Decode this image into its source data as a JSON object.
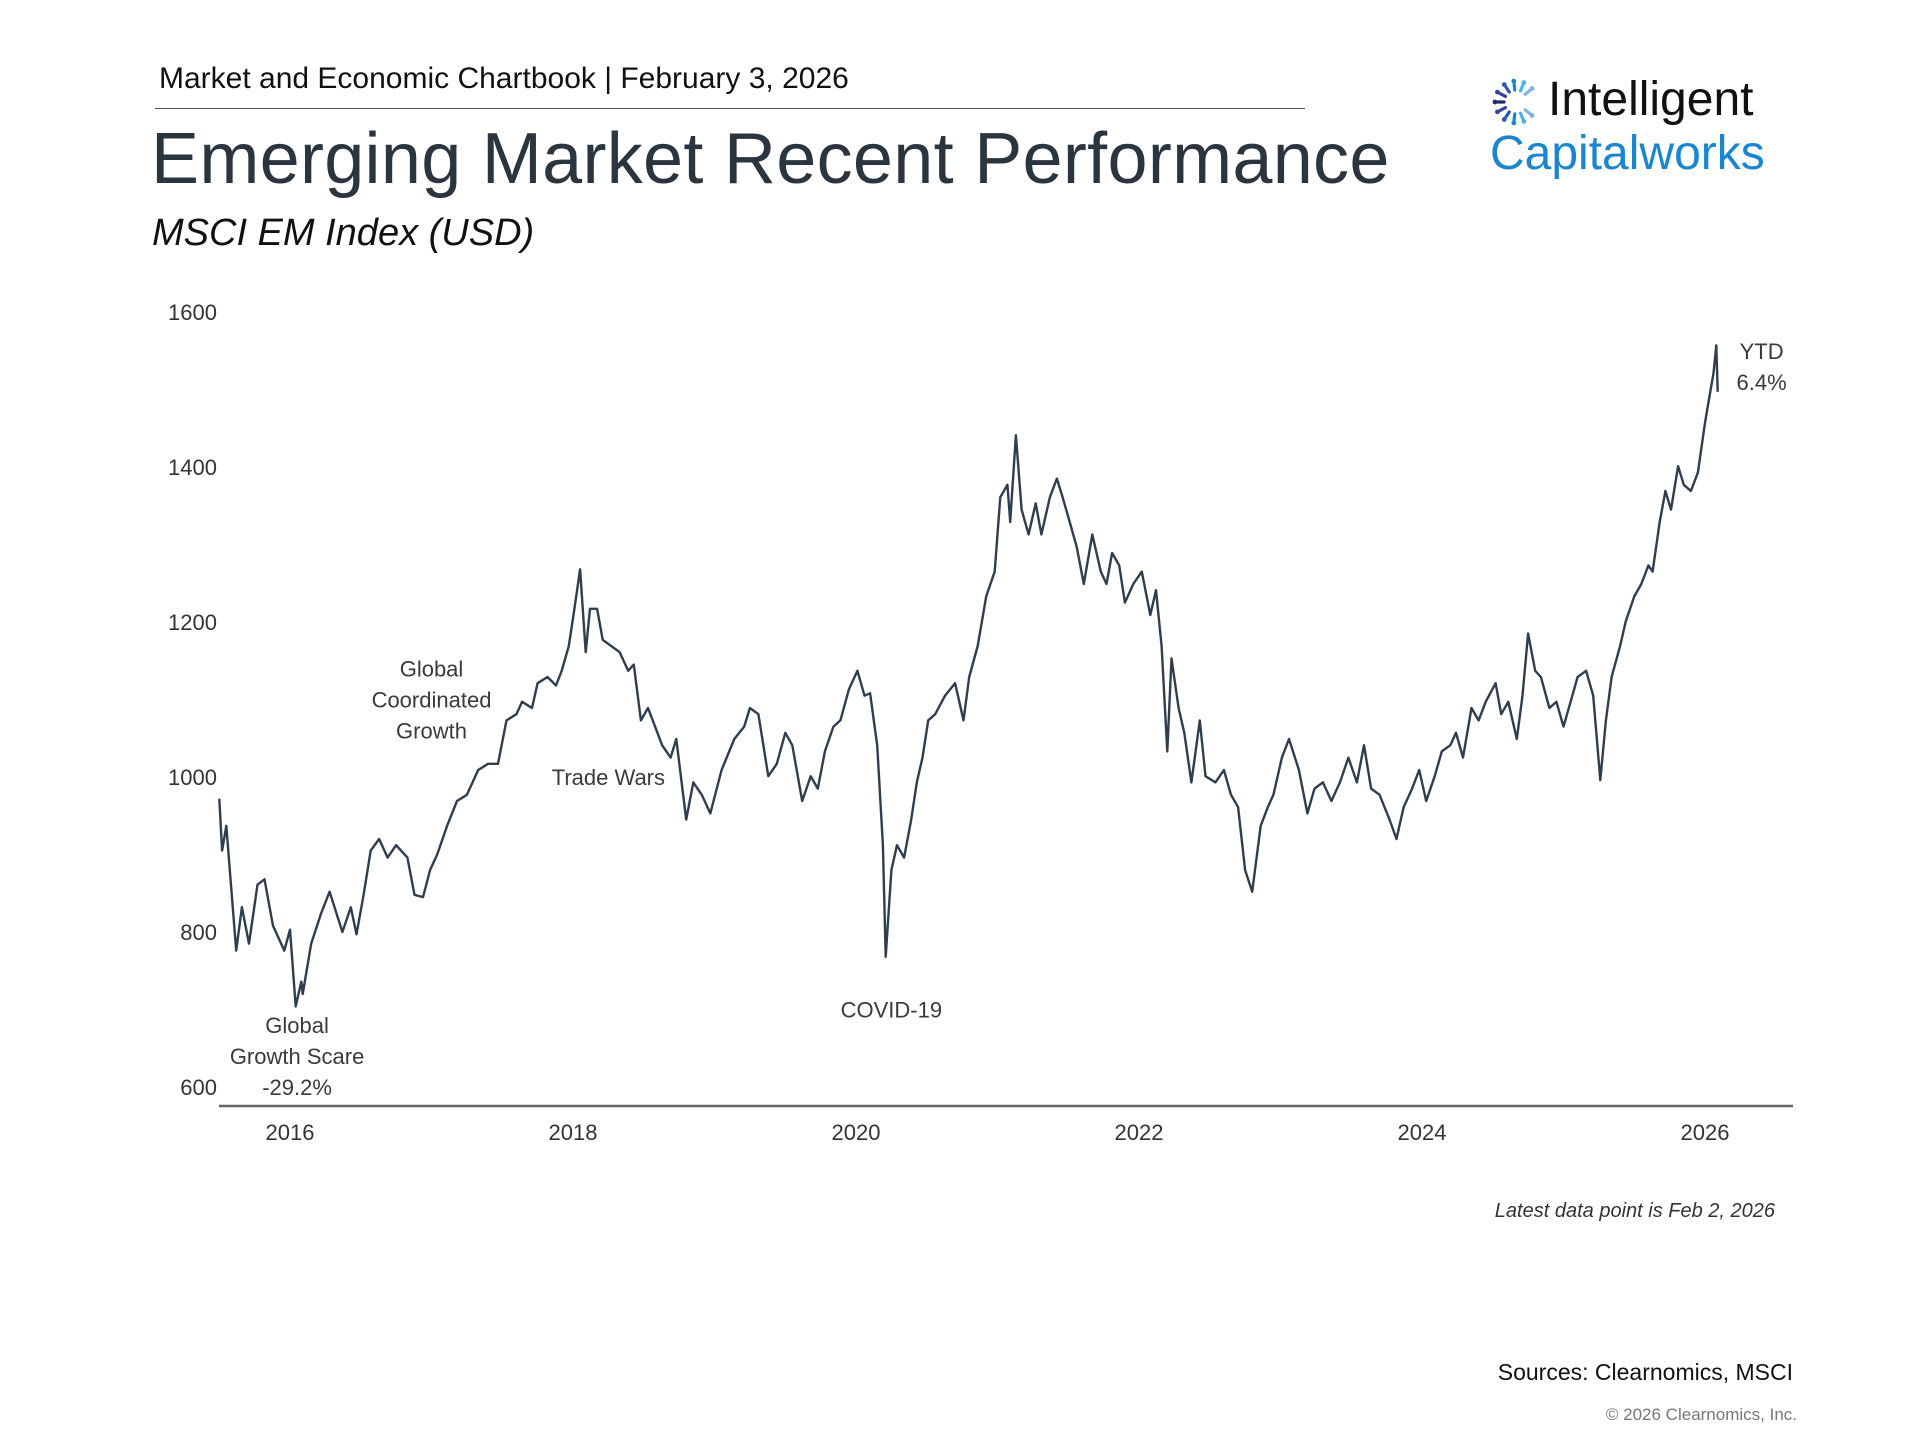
{
  "header": {
    "text": "Market and Economic Chartbook | February 3, 2026"
  },
  "title": "Emerging Market Recent Performance",
  "subtitle": "MSCI EM Index (USD)",
  "logo": {
    "line1": "Intelligent",
    "line2": "Capitalworks",
    "primary_color": "#1a86cf"
  },
  "footnote": "Latest data point is Feb 2, 2026",
  "sources": "Sources: Clearnomics, MSCI",
  "copyright": "© 2026 Clearnomics, Inc.",
  "chart_data": {
    "type": "line",
    "title": "MSCI EM Index (USD)",
    "xlabel": "",
    "ylabel": "",
    "xlim": [
      2015.5,
      2026.1
    ],
    "ylim": [
      600,
      1600
    ],
    "x_ticks": [
      "2016",
      "2018",
      "2020",
      "2022",
      "2024",
      "2026"
    ],
    "x_tick_values": [
      2016,
      2018,
      2020,
      2022,
      2024,
      2026
    ],
    "y_ticks": [
      "600",
      "800",
      "1000",
      "1200",
      "1400",
      "1600"
    ],
    "y_tick_values": [
      600,
      800,
      1000,
      1200,
      1400,
      1600
    ],
    "grid": false,
    "line_color": "#2f3e4e",
    "annotations": [
      {
        "lines": [
          "Global",
          "Growth Scare",
          "-29.2%"
        ],
        "x": 2016.05,
        "y": 640
      },
      {
        "lines": [
          "Global",
          "Coordinated",
          "Growth"
        ],
        "x": 2017.0,
        "y": 1100
      },
      {
        "lines": [
          "Trade Wars"
        ],
        "x": 2018.25,
        "y": 1000
      },
      {
        "lines": [
          "COVID-19"
        ],
        "x": 2020.25,
        "y": 700
      },
      {
        "lines": [
          "YTD",
          "6.4%"
        ],
        "x": 2026.4,
        "y": 1530
      }
    ],
    "series": [
      {
        "name": "MSCI EM Index",
        "points": [
          [
            2015.5,
            972
          ],
          [
            2015.52,
            905
          ],
          [
            2015.55,
            937
          ],
          [
            2015.62,
            776
          ],
          [
            2015.66,
            832
          ],
          [
            2015.71,
            785
          ],
          [
            2015.77,
            861
          ],
          [
            2015.82,
            868
          ],
          [
            2015.88,
            808
          ],
          [
            2015.96,
            776
          ],
          [
            2016.0,
            803
          ],
          [
            2016.04,
            704
          ],
          [
            2016.08,
            736
          ],
          [
            2016.09,
            720
          ],
          [
            2016.15,
            785
          ],
          [
            2016.22,
            824
          ],
          [
            2016.28,
            852
          ],
          [
            2016.37,
            800
          ],
          [
            2016.43,
            832
          ],
          [
            2016.47,
            797
          ],
          [
            2016.52,
            848
          ],
          [
            2016.57,
            905
          ],
          [
            2016.63,
            920
          ],
          [
            2016.69,
            896
          ],
          [
            2016.75,
            912
          ],
          [
            2016.83,
            896
          ],
          [
            2016.88,
            848
          ],
          [
            2016.94,
            845
          ],
          [
            2016.99,
            880
          ],
          [
            2017.04,
            900
          ],
          [
            2017.11,
            937
          ],
          [
            2017.18,
            969
          ],
          [
            2017.25,
            977
          ],
          [
            2017.33,
            1009
          ],
          [
            2017.4,
            1017
          ],
          [
            2017.47,
            1017
          ],
          [
            2017.53,
            1073
          ],
          [
            2017.6,
            1081
          ],
          [
            2017.64,
            1097
          ],
          [
            2017.71,
            1089
          ],
          [
            2017.75,
            1121
          ],
          [
            2017.82,
            1129
          ],
          [
            2017.88,
            1118
          ],
          [
            2017.92,
            1137
          ],
          [
            2017.97,
            1169
          ],
          [
            2018.01,
            1217
          ],
          [
            2018.05,
            1268
          ],
          [
            2018.09,
            1161
          ],
          [
            2018.12,
            1217
          ],
          [
            2018.17,
            1217
          ],
          [
            2018.21,
            1177
          ],
          [
            2018.27,
            1169
          ],
          [
            2018.33,
            1161
          ],
          [
            2018.39,
            1137
          ],
          [
            2018.43,
            1145
          ],
          [
            2018.48,
            1073
          ],
          [
            2018.53,
            1089
          ],
          [
            2018.58,
            1065
          ],
          [
            2018.63,
            1041
          ],
          [
            2018.69,
            1025
          ],
          [
            2018.73,
            1049
          ],
          [
            2018.8,
            945
          ],
          [
            2018.85,
            993
          ],
          [
            2018.91,
            977
          ],
          [
            2018.97,
            953
          ],
          [
            2019.05,
            1009
          ],
          [
            2019.14,
            1049
          ],
          [
            2019.21,
            1065
          ],
          [
            2019.25,
            1089
          ],
          [
            2019.31,
            1081
          ],
          [
            2019.38,
            1001
          ],
          [
            2019.44,
            1017
          ],
          [
            2019.5,
            1057
          ],
          [
            2019.55,
            1041
          ],
          [
            2019.62,
            969
          ],
          [
            2019.68,
            1001
          ],
          [
            2019.73,
            985
          ],
          [
            2019.78,
            1033
          ],
          [
            2019.84,
            1065
          ],
          [
            2019.89,
            1073
          ],
          [
            2019.95,
            1113
          ],
          [
            2020.01,
            1137
          ],
          [
            2020.06,
            1105
          ],
          [
            2020.1,
            1108
          ],
          [
            2020.15,
            1041
          ],
          [
            2020.19,
            912
          ],
          [
            2020.21,
            768
          ],
          [
            2020.25,
            880
          ],
          [
            2020.29,
            912
          ],
          [
            2020.34,
            896
          ],
          [
            2020.39,
            945
          ],
          [
            2020.43,
            993
          ],
          [
            2020.47,
            1025
          ],
          [
            2020.51,
            1073
          ],
          [
            2020.56,
            1081
          ],
          [
            2020.63,
            1105
          ],
          [
            2020.7,
            1121
          ],
          [
            2020.76,
            1073
          ],
          [
            2020.8,
            1129
          ],
          [
            2020.86,
            1169
          ],
          [
            2020.92,
            1233
          ],
          [
            2020.98,
            1265
          ],
          [
            2021.02,
            1361
          ],
          [
            2021.07,
            1377
          ],
          [
            2021.09,
            1329
          ],
          [
            2021.13,
            1441
          ],
          [
            2021.17,
            1345
          ],
          [
            2021.22,
            1313
          ],
          [
            2021.27,
            1353
          ],
          [
            2021.31,
            1313
          ],
          [
            2021.37,
            1361
          ],
          [
            2021.42,
            1385
          ],
          [
            2021.46,
            1361
          ],
          [
            2021.51,
            1329
          ],
          [
            2021.56,
            1297
          ],
          [
            2021.61,
            1249
          ],
          [
            2021.67,
            1313
          ],
          [
            2021.73,
            1265
          ],
          [
            2021.77,
            1249
          ],
          [
            2021.81,
            1289
          ],
          [
            2021.86,
            1273
          ],
          [
            2021.9,
            1225
          ],
          [
            2021.96,
            1249
          ],
          [
            2022.02,
            1265
          ],
          [
            2022.08,
            1209
          ],
          [
            2022.12,
            1241
          ],
          [
            2022.16,
            1169
          ],
          [
            2022.2,
            1033
          ],
          [
            2022.23,
            1153
          ],
          [
            2022.28,
            1089
          ],
          [
            2022.32,
            1057
          ],
          [
            2022.37,
            993
          ],
          [
            2022.43,
            1073
          ],
          [
            2022.47,
            1001
          ],
          [
            2022.54,
            993
          ],
          [
            2022.6,
            1009
          ],
          [
            2022.65,
            977
          ],
          [
            2022.7,
            961
          ],
          [
            2022.75,
            880
          ],
          [
            2022.8,
            852
          ],
          [
            2022.86,
            937
          ],
          [
            2022.91,
            961
          ],
          [
            2022.95,
            977
          ],
          [
            2023.01,
            1025
          ],
          [
            2023.06,
            1049
          ],
          [
            2023.13,
            1009
          ],
          [
            2023.19,
            953
          ],
          [
            2023.24,
            985
          ],
          [
            2023.3,
            993
          ],
          [
            2023.36,
            969
          ],
          [
            2023.42,
            993
          ],
          [
            2023.48,
            1025
          ],
          [
            2023.54,
            993
          ],
          [
            2023.59,
            1041
          ],
          [
            2023.64,
            985
          ],
          [
            2023.7,
            977
          ],
          [
            2023.77,
            945
          ],
          [
            2023.82,
            920
          ],
          [
            2023.87,
            961
          ],
          [
            2023.93,
            985
          ],
          [
            2023.98,
            1009
          ],
          [
            2024.03,
            969
          ],
          [
            2024.09,
            1001
          ],
          [
            2024.14,
            1033
          ],
          [
            2024.2,
            1041
          ],
          [
            2024.24,
            1057
          ],
          [
            2024.29,
            1025
          ],
          [
            2024.35,
            1089
          ],
          [
            2024.4,
            1073
          ],
          [
            2024.45,
            1097
          ],
          [
            2024.52,
            1121
          ],
          [
            2024.56,
            1081
          ],
          [
            2024.61,
            1097
          ],
          [
            2024.67,
            1049
          ],
          [
            2024.71,
            1105
          ],
          [
            2024.75,
            1185
          ],
          [
            2024.8,
            1137
          ],
          [
            2024.84,
            1129
          ],
          [
            2024.9,
            1089
          ],
          [
            2024.95,
            1097
          ],
          [
            2025.0,
            1065
          ],
          [
            2025.05,
            1097
          ],
          [
            2025.1,
            1129
          ],
          [
            2025.16,
            1137
          ],
          [
            2025.21,
            1105
          ],
          [
            2025.26,
            996
          ],
          [
            2025.3,
            1073
          ],
          [
            2025.34,
            1129
          ],
          [
            2025.4,
            1169
          ],
          [
            2025.44,
            1201
          ],
          [
            2025.5,
            1233
          ],
          [
            2025.55,
            1249
          ],
          [
            2025.6,
            1273
          ],
          [
            2025.63,
            1265
          ],
          [
            2025.68,
            1329
          ],
          [
            2025.72,
            1369
          ],
          [
            2025.76,
            1345
          ],
          [
            2025.81,
            1401
          ],
          [
            2025.85,
            1377
          ],
          [
            2025.9,
            1369
          ],
          [
            2025.95,
            1393
          ],
          [
            2026.0,
            1457
          ],
          [
            2026.03,
            1489
          ],
          [
            2026.06,
            1521
          ],
          [
            2026.08,
            1557
          ],
          [
            2026.09,
            1497
          ]
        ]
      }
    ]
  }
}
